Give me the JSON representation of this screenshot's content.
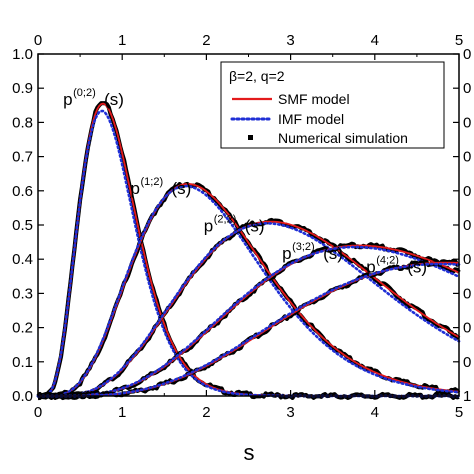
{
  "chart_data": {
    "type": "line",
    "xlabel": "s",
    "ylabel": "",
    "xlim": [
      0,
      5
    ],
    "ylim": [
      0,
      1.0
    ],
    "x_ticks": [
      "0",
      "1",
      "2",
      "3",
      "4",
      "5"
    ],
    "y_ticks": [
      "0.0",
      "0.1",
      "0.2",
      "0.3",
      "0.4",
      "0.5",
      "0.6",
      "0.7",
      "0.8",
      "0.9",
      "1.0"
    ],
    "top_axis_ticks": [
      "0",
      "1",
      "2",
      "3",
      "4",
      "5"
    ],
    "right_axis_ticks_visible": [
      "1",
      "0",
      "0",
      "0",
      "0",
      "0",
      "0",
      "0",
      "0",
      "0",
      "0"
    ],
    "grid": false,
    "legend": {
      "placement": "top-right",
      "title": "β=2, q=2",
      "entries": [
        {
          "label": "SMF model",
          "style": "solid",
          "color": "#e31a1c"
        },
        {
          "label": "IMF model",
          "style": "dotted",
          "color": "#1f2fd6"
        },
        {
          "label": "Numerical simulation",
          "style": "square-marker",
          "color": "#000000"
        }
      ]
    },
    "annotations": [
      {
        "base": "p",
        "sup": "(0;2)",
        "tail": "(s)"
      },
      {
        "base": "p",
        "sup": "(1;2)",
        "tail": "(s)"
      },
      {
        "base": "p",
        "sup": "(2;2)",
        "tail": "(s)"
      },
      {
        "base": "p",
        "sup": "(3;2)",
        "tail": "(s)"
      },
      {
        "base": "p",
        "sup": "(4;2)",
        "tail": "(s)"
      }
    ],
    "series_peaks": [
      {
        "k": 0,
        "peak_x": 0.77,
        "peak_y": 0.855
      },
      {
        "k": 1,
        "peak_x": 1.78,
        "peak_y": 0.62
      },
      {
        "k": 2,
        "peak_x": 2.76,
        "peak_y": 0.51
      },
      {
        "k": 3,
        "peak_x": 3.82,
        "peak_y": 0.44
      },
      {
        "k": 4,
        "peak_x": 4.85,
        "peak_y": 0.39
      }
    ],
    "colors": {
      "smf": "#e31a1c",
      "imf": "#1f2fd6",
      "simulation": "#000000"
    }
  }
}
